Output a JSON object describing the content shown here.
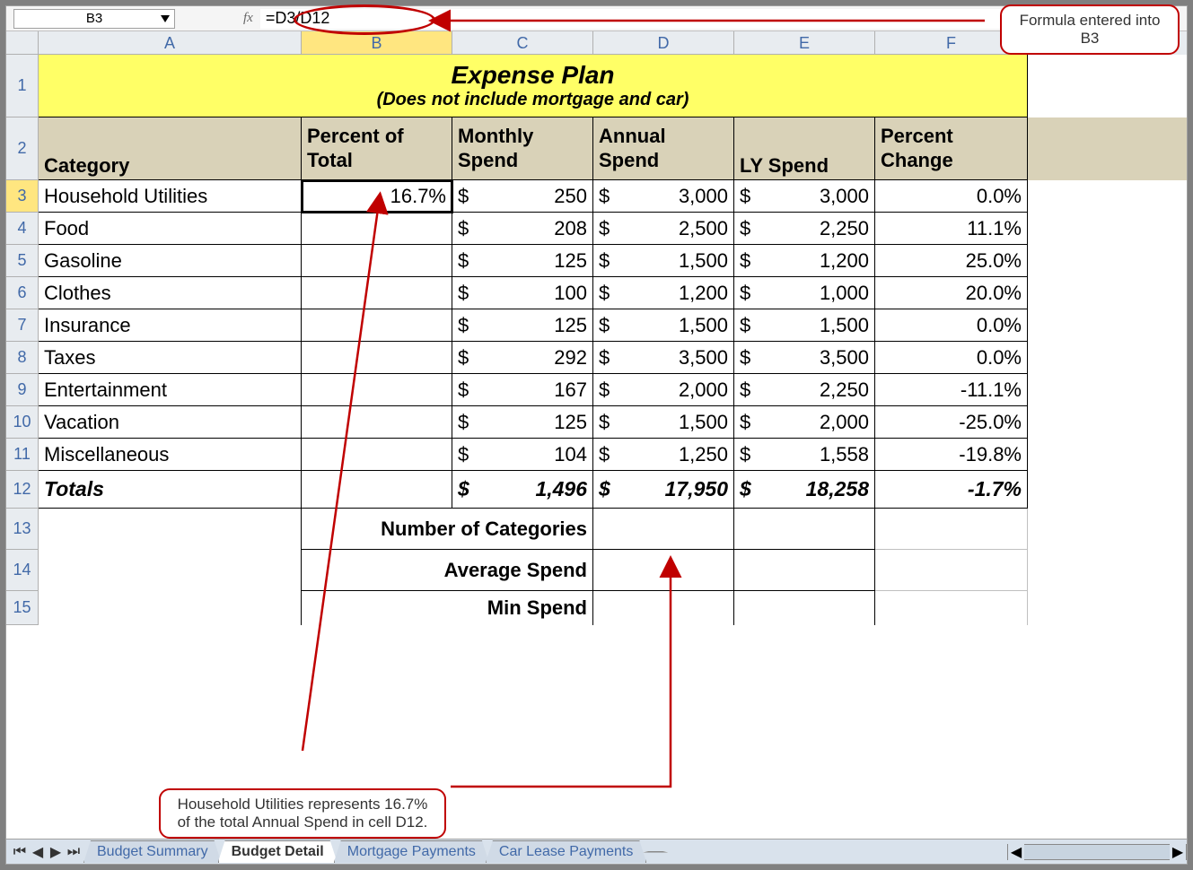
{
  "formula_bar": {
    "cell_ref": "B3",
    "fx_label": "fx",
    "formula": "=D3/D12"
  },
  "columns": [
    "A",
    "B",
    "C",
    "D",
    "E",
    "F"
  ],
  "selected_col": "B",
  "selected_row": "3",
  "title": {
    "main": "Expense Plan",
    "sub": "(Does not include mortgage and car)"
  },
  "headers": {
    "A": "Category",
    "B": "Percent of Total",
    "C": "Monthly Spend",
    "D": "Annual Spend",
    "E": "LY Spend",
    "F": "Percent Change"
  },
  "rows": [
    {
      "n": "3",
      "cat": "Household Utilities",
      "pct": "16.7%",
      "m": "250",
      "a": "3,000",
      "ly": "3,000",
      "chg": "0.0%"
    },
    {
      "n": "4",
      "cat": "Food",
      "pct": "",
      "m": "208",
      "a": "2,500",
      "ly": "2,250",
      "chg": "11.1%"
    },
    {
      "n": "5",
      "cat": "Gasoline",
      "pct": "",
      "m": "125",
      "a": "1,500",
      "ly": "1,200",
      "chg": "25.0%"
    },
    {
      "n": "6",
      "cat": "Clothes",
      "pct": "",
      "m": "100",
      "a": "1,200",
      "ly": "1,000",
      "chg": "20.0%"
    },
    {
      "n": "7",
      "cat": "Insurance",
      "pct": "",
      "m": "125",
      "a": "1,500",
      "ly": "1,500",
      "chg": "0.0%"
    },
    {
      "n": "8",
      "cat": "Taxes",
      "pct": "",
      "m": "292",
      "a": "3,500",
      "ly": "3,500",
      "chg": "0.0%"
    },
    {
      "n": "9",
      "cat": "Entertainment",
      "pct": "",
      "m": "167",
      "a": "2,000",
      "ly": "2,250",
      "chg": "-11.1%"
    },
    {
      "n": "10",
      "cat": "Vacation",
      "pct": "",
      "m": "125",
      "a": "1,500",
      "ly": "2,000",
      "chg": "-25.0%"
    },
    {
      "n": "11",
      "cat": "Miscellaneous",
      "pct": "",
      "m": "104",
      "a": "1,250",
      "ly": "1,558",
      "chg": "-19.8%"
    }
  ],
  "totals": {
    "n": "12",
    "label": "Totals",
    "m": "1,496",
    "a": "17,950",
    "ly": "18,258",
    "chg": "-1.7%"
  },
  "summary_labels": {
    "r13": {
      "n": "13",
      "label": "Number of Categories"
    },
    "r14": {
      "n": "14",
      "label": "Average Spend"
    },
    "r15": {
      "n": "15",
      "label": "Min Spend"
    }
  },
  "tabs": [
    "Budget Summary",
    "Budget Detail",
    "Mortgage Payments",
    "Car Lease Payments"
  ],
  "active_tab": "Budget Detail",
  "callouts": {
    "top": "Formula entered into B3",
    "bottom": "Household Utilities represents 16.7% of the total Annual Spend in cell D12."
  },
  "colors": {
    "title_bg": "#ffff66",
    "header_bg": "#d9d2b8",
    "red": "#c00000",
    "col_head_txt": "#4169a8"
  },
  "row_heights": {
    "title": 70,
    "header": 70,
    "data": 36,
    "totals": 42,
    "summary": 44
  },
  "currency_symbol": "$"
}
